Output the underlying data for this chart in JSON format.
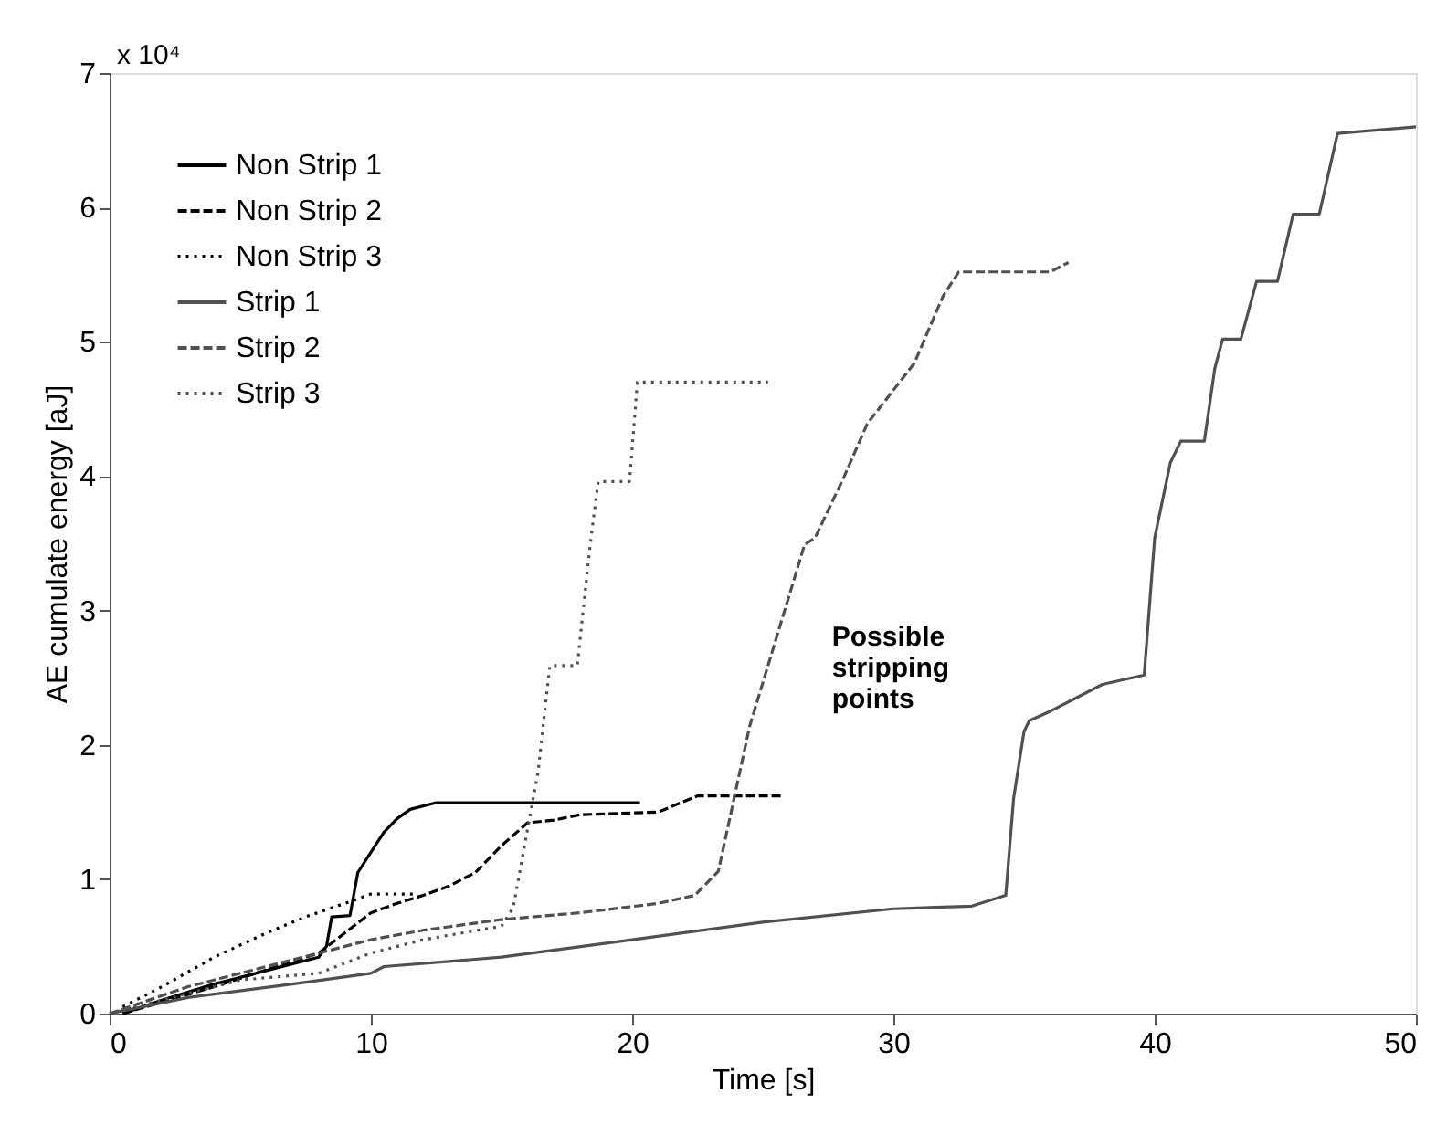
{
  "chart_data": {
    "type": "line",
    "xlabel": "Time [s]",
    "ylabel": "AE cumulate energy [aJ]",
    "xlim": [
      0,
      50
    ],
    "xticks": [
      0,
      10,
      20,
      30,
      40,
      50
    ],
    "ylim": [
      0,
      7
    ],
    "yticks": [
      0,
      1,
      2,
      3,
      4,
      5,
      6,
      7
    ],
    "grid": false,
    "legend": "top left",
    "marker": "none",
    "annotations": [
      "x 10⁴",
      "Possible stripping points"
    ],
    "series": [
      {
        "name": "Non Strip 1",
        "color": "#000000",
        "line_style": "solid",
        "x": [
          0.5,
          2,
          4,
          6,
          8,
          8.3,
          8.5,
          9.2,
          9.5,
          10,
          10.5,
          11,
          11.5,
          12.5,
          20.3
        ],
        "values": [
          0,
          0.1,
          0.22,
          0.32,
          0.42,
          0.5,
          0.72,
          0.73,
          1.05,
          1.2,
          1.35,
          1.45,
          1.52,
          1.57,
          1.57
        ]
      },
      {
        "name": "Non Strip 2",
        "color": "#000000",
        "line_style": "dashed",
        "x": [
          0.5,
          4,
          8,
          9,
          10,
          11,
          12,
          13,
          14,
          15,
          16,
          17,
          18,
          21,
          22.5,
          25.7
        ],
        "values": [
          0,
          0.2,
          0.45,
          0.6,
          0.75,
          0.82,
          0.88,
          0.95,
          1.05,
          1.25,
          1.42,
          1.44,
          1.48,
          1.5,
          1.62,
          1.62
        ]
      },
      {
        "name": "Non Strip 3",
        "color": "#000000",
        "line_style": "dotted",
        "x": [
          0.5,
          2,
          4,
          6,
          7.5,
          9.3,
          10,
          11.6
        ],
        "values": [
          0.05,
          0.2,
          0.42,
          0.6,
          0.72,
          0.84,
          0.89,
          0.89
        ]
      },
      {
        "name": "Strip 1",
        "color": "#505050",
        "line_style": "solid",
        "x": [
          0,
          3,
          7,
          10,
          10.5,
          15,
          20,
          25,
          30,
          33,
          34.3,
          34.6,
          35,
          35.2,
          36,
          37,
          38,
          39.6,
          40,
          40.6,
          41,
          41.9,
          42.3,
          42.6,
          43.3,
          43.9,
          44.7,
          45.3,
          46.3,
          47,
          50
        ],
        "values": [
          0,
          0.12,
          0.22,
          0.3,
          0.35,
          0.42,
          0.55,
          0.68,
          0.78,
          0.8,
          0.88,
          1.6,
          2.1,
          2.18,
          2.25,
          2.35,
          2.45,
          2.52,
          3.54,
          4.1,
          4.26,
          4.26,
          4.8,
          5.02,
          5.02,
          5.45,
          5.45,
          5.95,
          5.95,
          6.55,
          6.6
        ]
      },
      {
        "name": "Strip 2",
        "color": "#505050",
        "line_style": "dashed",
        "x": [
          0,
          3,
          6,
          8,
          10,
          12,
          15,
          18,
          21,
          22.4,
          23.3,
          24.5,
          26.6,
          27,
          28.1,
          29,
          30.8,
          31.9,
          32.5,
          36,
          36.7
        ],
        "values": [
          0,
          0.2,
          0.35,
          0.45,
          0.55,
          0.62,
          0.7,
          0.75,
          0.82,
          0.88,
          1.06,
          2.14,
          3.49,
          3.54,
          3.99,
          4.39,
          4.84,
          5.34,
          5.52,
          5.52,
          5.59
        ]
      },
      {
        "name": "Strip 3",
        "color": "#505050",
        "line_style": "dotted",
        "x": [
          0,
          3,
          5,
          8,
          10,
          12,
          15,
          15.45,
          16.4,
          16.85,
          17.9,
          18.4,
          18.7,
          19.9,
          20.2,
          25.2
        ],
        "values": [
          0,
          0.15,
          0.25,
          0.3,
          0.45,
          0.55,
          0.65,
          0.79,
          1.8,
          2.59,
          2.59,
          3.5,
          3.96,
          3.96,
          4.7,
          4.7
        ]
      }
    ]
  }
}
